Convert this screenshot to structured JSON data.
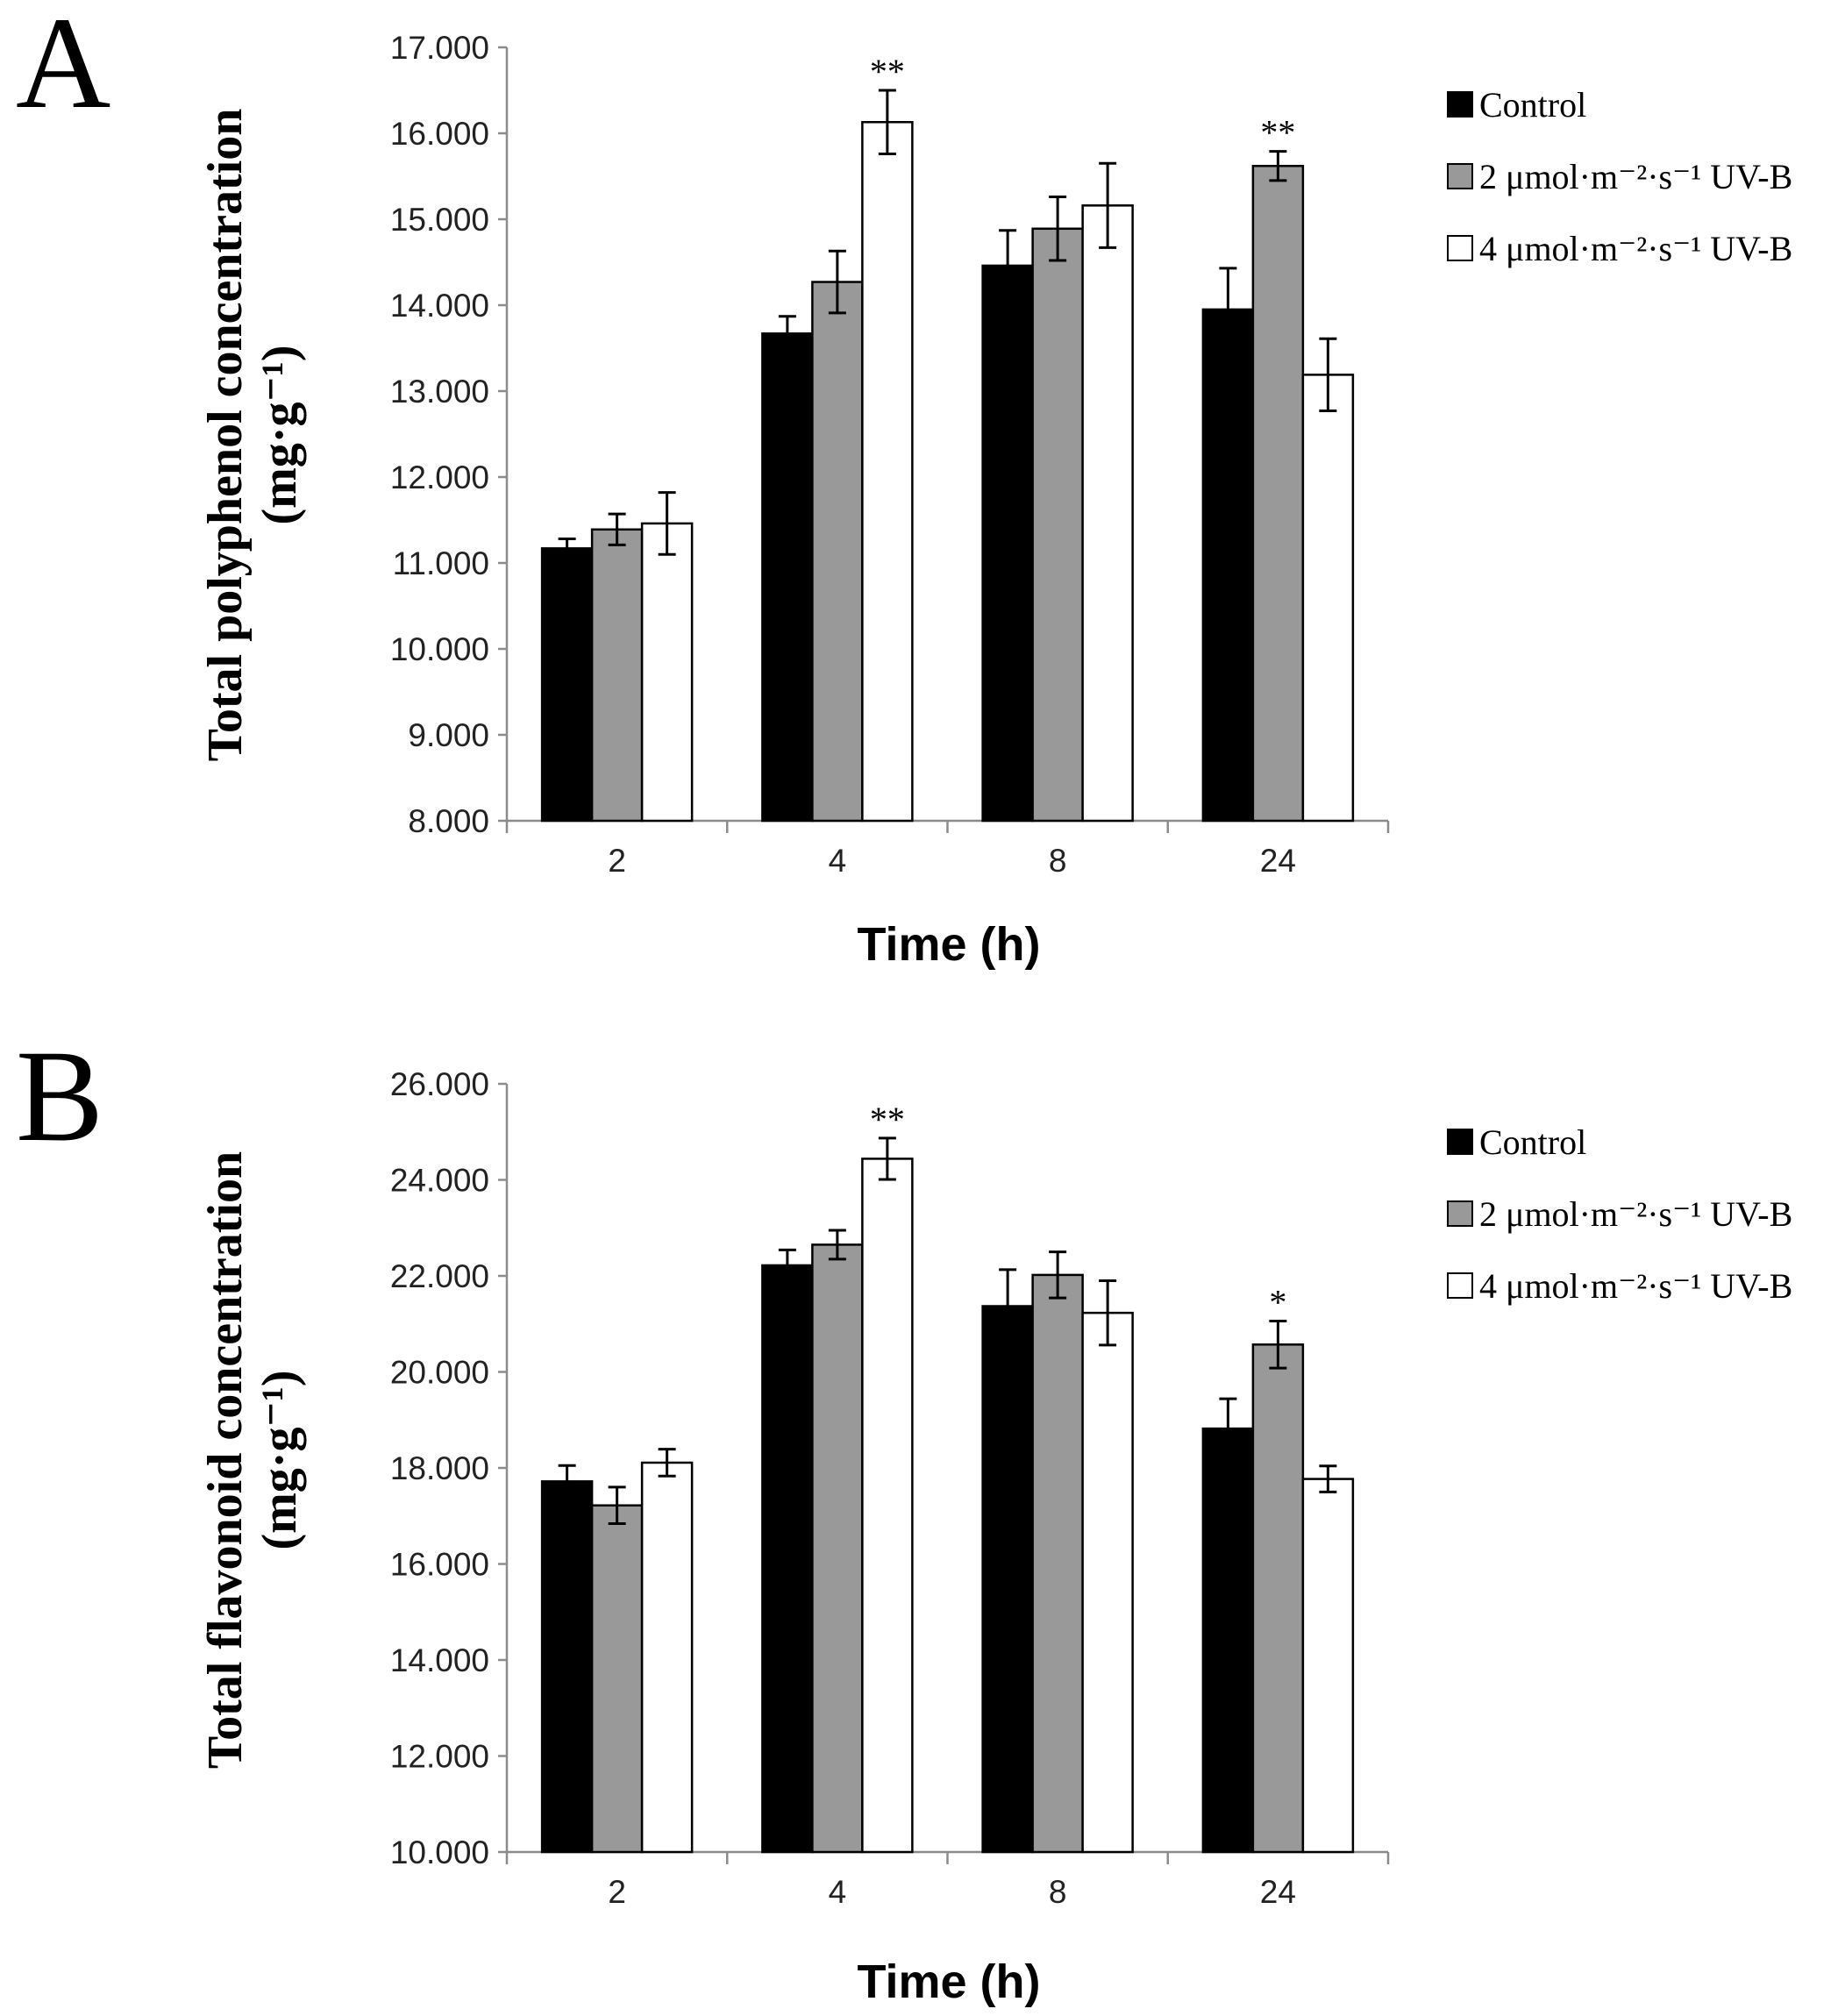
{
  "chart_data": [
    {
      "type": "bar",
      "panel": "A",
      "title": "",
      "xlabel": "Time (h)",
      "ylabel": "Total polyphenol concentration",
      "ylabel_unit": "(mg·g⁻¹)",
      "ylim": [
        8,
        17
      ],
      "yticks": [
        8,
        9,
        10,
        11,
        12,
        13,
        14,
        15,
        16,
        17
      ],
      "ytick_labels": [
        "8.000",
        "9.000",
        "10.000",
        "11.000",
        "12.000",
        "13.000",
        "14.000",
        "15.000",
        "16.000",
        "17.000"
      ],
      "categories": [
        "2",
        "4",
        "8",
        "24"
      ],
      "series": [
        {
          "name": "Control",
          "color": "#000000",
          "values": [
            11.17,
            13.67,
            14.46,
            13.95
          ],
          "errors": [
            0.11,
            0.2,
            0.41,
            0.48
          ]
        },
        {
          "name": "2 μmol·m⁻²·s⁻¹ UV-B",
          "color": "#999999",
          "values": [
            11.39,
            14.27,
            14.89,
            15.62
          ],
          "errors": [
            0.18,
            0.36,
            0.37,
            0.17
          ]
        },
        {
          "name": "4 μmol·m⁻²·s⁻¹ UV-B",
          "color": "#ffffff",
          "values": [
            11.46,
            16.13,
            15.16,
            13.19
          ],
          "errors": [
            0.36,
            0.37,
            0.49,
            0.42
          ]
        }
      ],
      "annotations": [
        {
          "text": "**",
          "category": "4",
          "series": 2
        },
        {
          "text": "**",
          "category": "24",
          "series": 1
        }
      ],
      "legend_position": "right"
    },
    {
      "type": "bar",
      "panel": "B",
      "title": "",
      "xlabel": "Time (h)",
      "ylabel": "Total flavonoid concentration",
      "ylabel_unit": "(mg·g⁻¹)",
      "ylim": [
        10,
        26
      ],
      "yticks": [
        10,
        12,
        14,
        16,
        18,
        20,
        22,
        24,
        26
      ],
      "ytick_labels": [
        "10.000",
        "12.000",
        "14.000",
        "16.000",
        "18.000",
        "20.000",
        "22.000",
        "24.000",
        "26.000"
      ],
      "categories": [
        "2",
        "4",
        "8",
        "24"
      ],
      "series": [
        {
          "name": "Control",
          "color": "#000000",
          "values": [
            17.72,
            22.22,
            21.37,
            18.82
          ],
          "errors": [
            0.33,
            0.32,
            0.76,
            0.62
          ]
        },
        {
          "name": "2 μmol·m⁻²·s⁻¹ UV-B",
          "color": "#999999",
          "values": [
            17.22,
            22.65,
            22.02,
            20.57
          ],
          "errors": [
            0.38,
            0.3,
            0.48,
            0.49
          ]
        },
        {
          "name": "4 μmol·m⁻²·s⁻¹ UV-B",
          "color": "#ffffff",
          "values": [
            18.11,
            24.44,
            21.23,
            17.77
          ],
          "errors": [
            0.28,
            0.43,
            0.67,
            0.27
          ]
        }
      ],
      "annotations": [
        {
          "text": "**",
          "category": "4",
          "series": 2
        },
        {
          "text": "*",
          "category": "24",
          "series": 1
        }
      ],
      "legend_position": "right"
    }
  ]
}
